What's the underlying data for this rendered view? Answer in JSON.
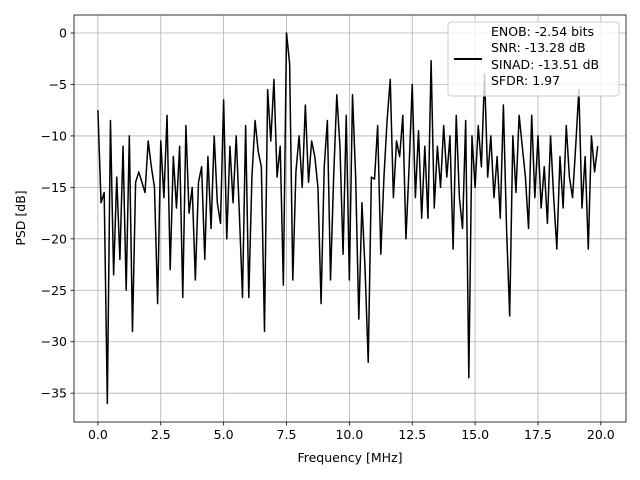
{
  "chart_data": {
    "type": "line",
    "xlabel": "Frequency [MHz]",
    "ylabel": "PSD [dB]",
    "xlim": [
      -0.95,
      21.0
    ],
    "ylim": [
      -37.8,
      1.75
    ],
    "xticks": [
      {
        "value": 0,
        "label": "0.0"
      },
      2.5,
      {
        "value": 5,
        "label": "5.0"
      },
      7.5,
      {
        "value": 10,
        "label": "10.0"
      },
      12.5,
      {
        "value": 15,
        "label": "15.0"
      },
      17.5,
      {
        "value": 20,
        "label": "20.0"
      }
    ],
    "yticks": [
      0,
      {
        "value": -5,
        "label": "−5"
      },
      {
        "value": -10,
        "label": "−10"
      },
      {
        "value": -15,
        "label": "−15"
      },
      {
        "value": -20,
        "label": "−20"
      },
      {
        "value": -25,
        "label": "−25"
      },
      {
        "value": -30,
        "label": "−30"
      },
      {
        "value": -35,
        "label": "−35"
      }
    ],
    "grid": true,
    "legend": "upper right",
    "x": [
      0,
      0.125,
      0.25,
      0.375,
      0.5,
      0.625,
      0.75,
      0.875,
      1,
      1.125,
      1.25,
      1.375,
      1.5,
      1.625,
      1.75,
      1.875,
      2,
      2.125,
      2.25,
      2.375,
      2.5,
      2.625,
      2.75,
      2.875,
      3,
      3.125,
      3.25,
      3.375,
      3.5,
      3.625,
      3.75,
      3.875,
      4,
      4.125,
      4.25,
      4.375,
      4.5,
      4.625,
      4.75,
      4.875,
      5,
      5.125,
      5.25,
      5.375,
      5.5,
      5.625,
      5.75,
      5.875,
      6,
      6.125,
      6.25,
      6.375,
      6.5,
      6.625,
      6.75,
      6.875,
      7,
      7.125,
      7.25,
      7.375,
      7.5,
      7.625,
      7.75,
      7.875,
      8,
      8.125,
      8.25,
      8.375,
      8.5,
      8.625,
      8.75,
      8.875,
      9,
      9.125,
      9.25,
      9.375,
      9.5,
      9.625,
      9.75,
      9.875,
      10,
      10.125,
      10.25,
      10.375,
      10.5,
      10.625,
      10.75,
      10.875,
      11,
      11.125,
      11.25,
      11.375,
      11.5,
      11.625,
      11.75,
      11.875,
      12,
      12.125,
      12.25,
      12.375,
      12.5,
      12.625,
      12.75,
      12.875,
      13,
      13.125,
      13.25,
      13.375,
      13.5,
      13.625,
      13.75,
      13.875,
      14,
      14.125,
      14.25,
      14.375,
      14.5,
      14.625,
      14.75,
      14.875,
      15,
      15.125,
      15.25,
      15.375,
      15.5,
      15.625,
      15.75,
      15.875,
      16,
      16.125,
      16.25,
      16.375,
      16.5,
      16.625,
      16.75,
      16.875,
      17,
      17.125,
      17.25,
      17.375,
      17.5,
      17.625,
      17.75,
      17.875,
      18,
      18.125,
      18.25,
      18.375,
      18.5,
      18.625,
      18.75,
      18.875,
      19,
      19.125,
      19.25,
      19.375,
      19.5,
      19.625,
      19.75,
      19.875
    ],
    "series": [
      {
        "name": "ENOB: -2.54 bits\nSNR: -13.28 dB\nSINAD: -13.51 dB\nSFDR: 1.97",
        "color": "#000000",
        "values": [
          -7.5,
          -16.5,
          -15.5,
          -36,
          -8.5,
          -23.5,
          -14,
          -22,
          -11,
          -25,
          -10,
          -29,
          -14.5,
          -13.5,
          -14.5,
          -15.5,
          -10.5,
          -13,
          -15,
          -26.3,
          -10.5,
          -16,
          -8,
          -23,
          -12,
          -17,
          -11,
          -25.7,
          -9,
          -17.5,
          -15,
          -24,
          -14.5,
          -13,
          -22,
          -12,
          -19,
          -10,
          -16.5,
          -18.5,
          -6.5,
          -20,
          -11,
          -16.5,
          -10,
          -17.5,
          -25.7,
          -9,
          -25.7,
          -14,
          -8.5,
          -11.5,
          -13,
          -29,
          -5.5,
          -10.5,
          -4.5,
          -14,
          -11,
          -24.5,
          0,
          -3,
          -24,
          -13.5,
          -10,
          -15,
          -7,
          -14.5,
          -10.5,
          -12,
          -15,
          -26.3,
          -13,
          -8.5,
          -24,
          -14,
          -6,
          -11,
          -21.5,
          -8,
          -24,
          -6,
          -14,
          -27.8,
          -16.5,
          -23,
          -32,
          -14,
          -14.2,
          -9,
          -21.5,
          -14,
          -8.5,
          -4.5,
          -16,
          -10.5,
          -12,
          -8,
          -20,
          -13,
          -5,
          -16,
          -9.5,
          -18,
          -11,
          -18,
          -2.7,
          -17,
          -11,
          -15,
          -9,
          -14,
          -10,
          -21,
          -8,
          -16,
          -19,
          -8.5,
          -33.5,
          -10,
          -15,
          -9,
          -13,
          -4,
          -14,
          -10,
          -16,
          -12,
          -18,
          -7,
          -19,
          -27.5,
          -10,
          -15.5,
          -8,
          -11,
          -14,
          -19,
          -8,
          -16,
          -10,
          -17,
          -13,
          -18.5,
          -10,
          -16,
          -21,
          -12,
          -17,
          -9,
          -14,
          -16,
          -11,
          -5.5,
          -17,
          -12,
          -21,
          -10,
          -13.5,
          -11
        ]
      }
    ]
  }
}
